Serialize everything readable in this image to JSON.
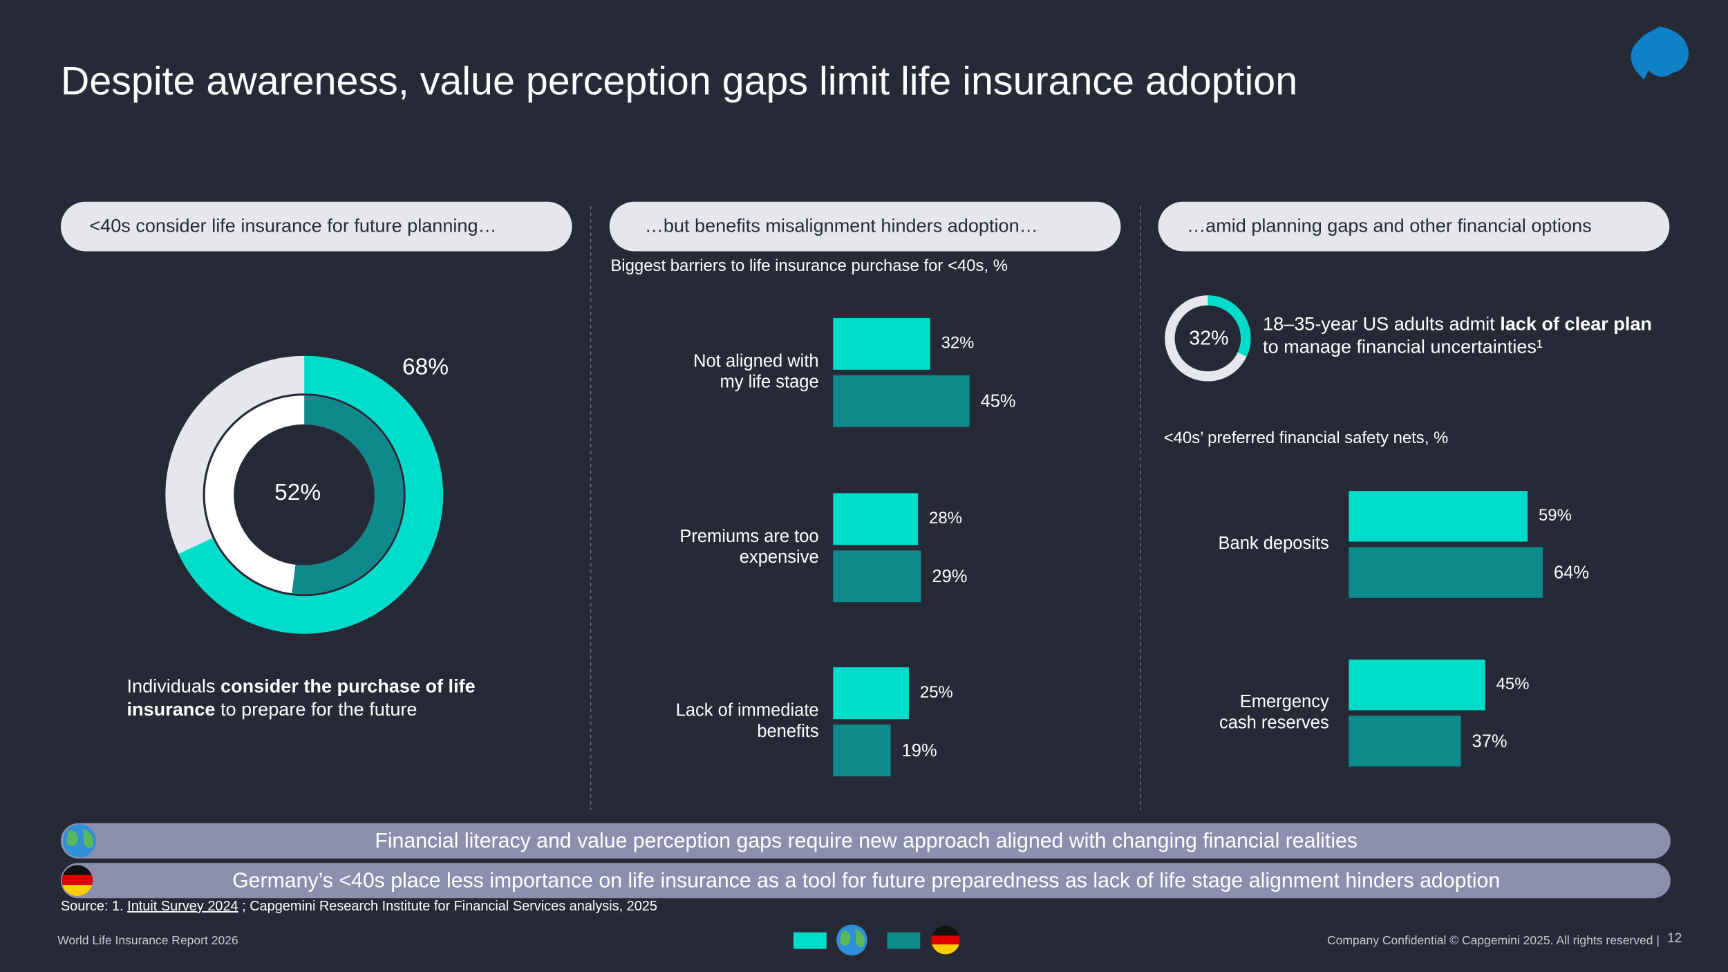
{
  "title": "Despite awareness, value perception gaps limit life insurance adoption",
  "panels": [
    {
      "heading": "<40s consider  life insurance for future planning…"
    },
    {
      "heading": "…but benefits  misalignment hinders adoption…"
    },
    {
      "heading": "…amid planning gaps and other financial options"
    }
  ],
  "chart_data": [
    {
      "type": "donut",
      "values": [
        68,
        52
      ],
      "value_labels": [
        "68%",
        "52%"
      ],
      "colors": [
        "#00dccb",
        "#0e8a8c"
      ],
      "track_colors": [
        "#e6e7ec",
        "#ffffff"
      ]
    },
    {
      "type": "bar",
      "orientation": "horizontal",
      "title": "Biggest barriers to life insurance purchase for <40s, %",
      "categories": [
        [
          "Not aligned with",
          "my life stage"
        ],
        [
          "Premiums are too",
          "expensive"
        ],
        [
          "Lack of immediate",
          "benefits"
        ]
      ],
      "xlim": [
        0,
        100
      ],
      "series": [
        {
          "color": "#00dccb",
          "values": [
            32,
            28,
            25
          ],
          "value_labels": [
            "32%",
            "28%",
            "25%"
          ]
        },
        {
          "color": "#0e8a8c",
          "values": [
            45,
            29,
            19
          ],
          "value_labels": [
            "45%",
            "29%",
            "19%"
          ]
        }
      ]
    },
    {
      "type": "donut",
      "values": [
        32
      ],
      "value_labels": [
        "32%"
      ],
      "colors": [
        "#00dccb"
      ],
      "track_colors": [
        "#e6e7ec"
      ]
    },
    {
      "type": "bar",
      "orientation": "horizontal",
      "title": "<40s’ preferred financial safety nets, %",
      "categories": [
        [
          "Bank deposits"
        ],
        [
          "Emergency",
          "cash reserves"
        ]
      ],
      "xlim": [
        0,
        100
      ],
      "series": [
        {
          "color": "#00dccb",
          "values": [
            59,
            45
          ],
          "value_labels": [
            "59%",
            "45%"
          ]
        },
        {
          "color": "#0e8a8c",
          "values": [
            64,
            37
          ],
          "value_labels": [
            "64%",
            "37%"
          ]
        }
      ]
    }
  ],
  "captions": [
    [
      [
        {
          "t": "Individuals ",
          "b": false
        },
        {
          "t": "consider the purchase of life",
          "b": true
        }
      ],
      [
        {
          "t": "insurance",
          "b": true
        },
        {
          "t": " to prepare for the future",
          "b": false
        }
      ]
    ],
    [
      [
        {
          "t": "18–35-year US adults admit ",
          "b": false
        },
        {
          "t": "lack of clear plan",
          "b": true
        }
      ],
      [
        {
          "t": "to manage financial uncertainties¹",
          "b": false
        }
      ]
    ]
  ],
  "banners": [
    "Financial literacy and value perception gaps require new approach aligned with changing financial realities",
    "Germany’s <40s place less importance on life insurance as a tool for future preparedness as lack of life stage alignment hinders adoption"
  ],
  "source": [
    {
      "t": "Source: 1. ",
      "u": false
    },
    {
      "t": "Intuit Survey 2024",
      "u": true
    },
    {
      "t": " ; Capgemini Research Institute for Financial Services analysis, 2025",
      "u": false
    }
  ],
  "footer": {
    "left": "World Life Insurance Report 2026",
    "right": "Company Confidential © Capgemini 2025. All rights reserved |",
    "page": "12"
  }
}
